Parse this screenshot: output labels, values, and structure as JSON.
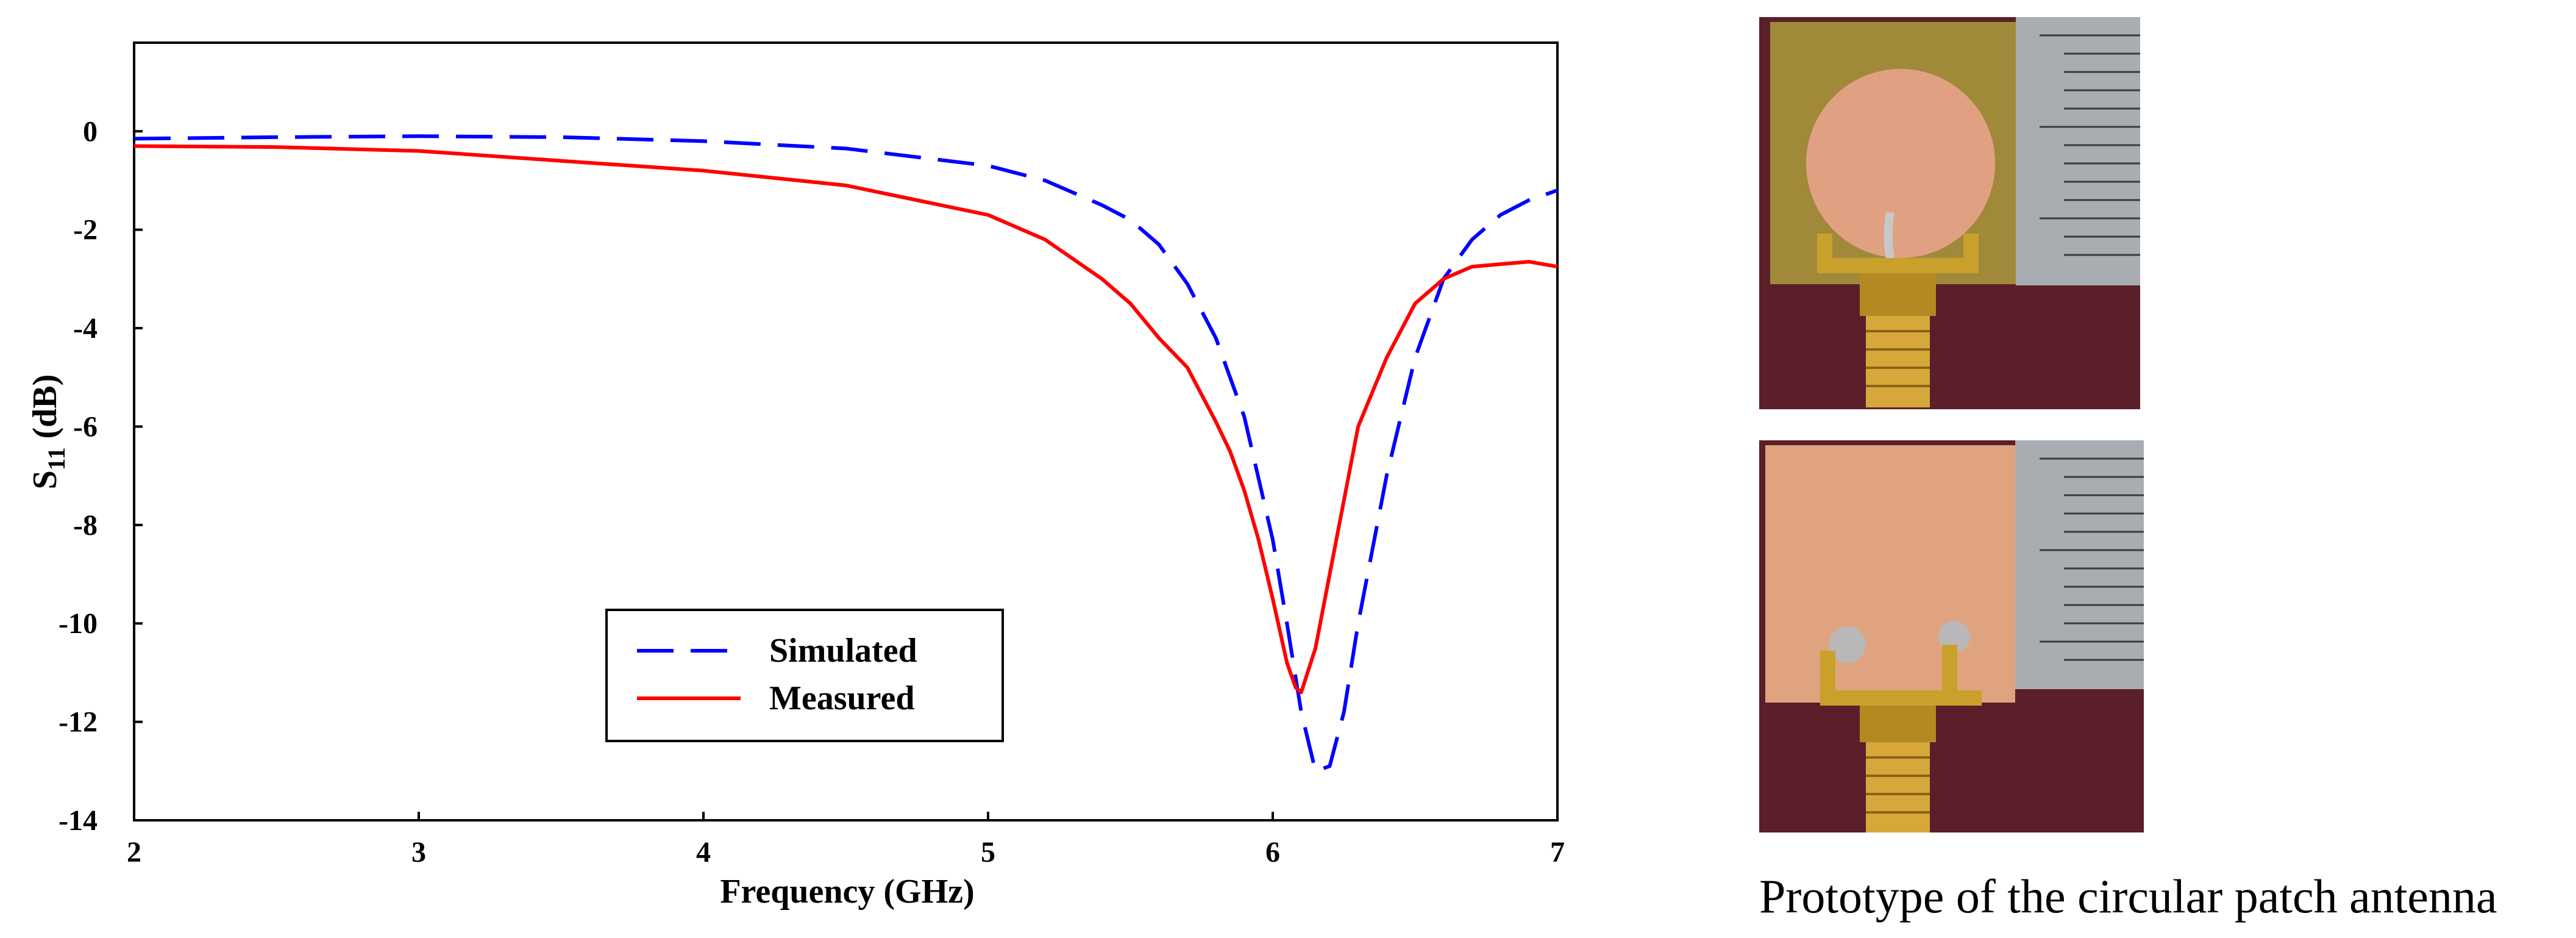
{
  "chart_data": {
    "type": "line",
    "title": "",
    "xlabel": "Frequency (GHz)",
    "ylabel_main": "S",
    "ylabel_sub": "11",
    "ylabel_unit": " (dB)",
    "xlim": [
      2,
      7
    ],
    "ylim": [
      -14,
      1.8
    ],
    "xticks": [
      "2",
      "3",
      "4",
      "5",
      "6",
      "7"
    ],
    "yticks": [
      "0",
      "-2",
      "-4",
      "-6",
      "-8",
      "-10",
      "-12",
      "-14"
    ],
    "grid": false,
    "legend_position": "lower-center",
    "series": [
      {
        "name": "Simulated",
        "color": "#0000ff",
        "style": "dashed",
        "x": [
          2.0,
          2.5,
          3.0,
          3.5,
          4.0,
          4.5,
          5.0,
          5.2,
          5.4,
          5.5,
          5.6,
          5.7,
          5.8,
          5.9,
          6.0,
          6.05,
          6.1,
          6.15,
          6.2,
          6.25,
          6.3,
          6.4,
          6.5,
          6.6,
          6.7,
          6.8,
          6.9,
          7.0
        ],
        "y": [
          -0.15,
          -0.12,
          -0.1,
          -0.12,
          -0.2,
          -0.35,
          -0.7,
          -1.0,
          -1.5,
          -1.8,
          -2.3,
          -3.1,
          -4.2,
          -5.8,
          -8.3,
          -10.0,
          -11.8,
          -13.0,
          -12.9,
          -11.8,
          -10.0,
          -7.0,
          -4.6,
          -3.0,
          -2.2,
          -1.7,
          -1.4,
          -1.2
        ]
      },
      {
        "name": "Measured",
        "color": "#ff0000",
        "style": "solid",
        "x": [
          2.0,
          2.5,
          3.0,
          3.5,
          4.0,
          4.5,
          5.0,
          5.2,
          5.4,
          5.5,
          5.6,
          5.7,
          5.8,
          5.85,
          5.9,
          5.95,
          6.0,
          6.05,
          6.08,
          6.1,
          6.15,
          6.2,
          6.3,
          6.4,
          6.5,
          6.6,
          6.7,
          6.8,
          6.9,
          7.0
        ],
        "y": [
          -0.3,
          -0.32,
          -0.4,
          -0.6,
          -0.8,
          -1.1,
          -1.7,
          -2.2,
          -3.0,
          -3.5,
          -4.2,
          -4.8,
          -5.9,
          -6.5,
          -7.3,
          -8.3,
          -9.5,
          -10.8,
          -11.3,
          -11.4,
          -10.5,
          -9.0,
          -6.0,
          -4.6,
          -3.5,
          -3.0,
          -2.75,
          -2.7,
          -2.65,
          -2.75
        ]
      }
    ]
  },
  "caption": "Prototype of the circular patch antenna"
}
